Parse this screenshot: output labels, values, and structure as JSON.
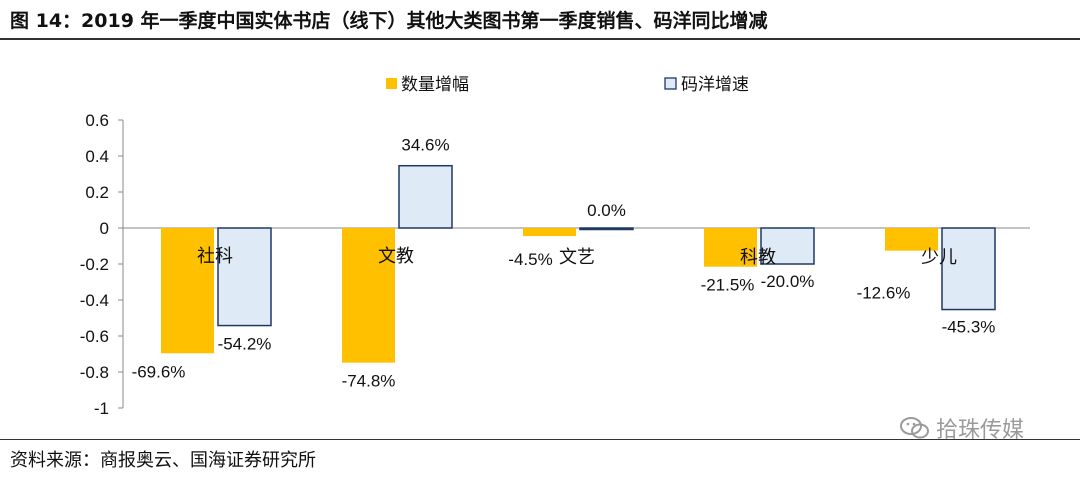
{
  "title": "图 14：2019 年一季度中国实体书店（线下）其他大类图书第一季度销售、码洋同比增减",
  "source": "资料来源：商报奥云、国海证券研究所",
  "watermark": {
    "text": "拾珠传媒",
    "icon": "wechat-icon"
  },
  "colors": {
    "qty": "#FFC000",
    "price": "#DEEBF7",
    "price_border": "#1F3864"
  },
  "chart_data": {
    "type": "bar",
    "categories": [
      "社科",
      "文教",
      "文艺",
      "科教",
      "少儿"
    ],
    "series": [
      {
        "name": "数量增幅",
        "values": [
          -0.696,
          -0.748,
          -0.045,
          -0.215,
          -0.126
        ],
        "labels": [
          "-69.6%",
          "-74.8%",
          "-4.5%",
          "-21.5%",
          "-12.6%"
        ]
      },
      {
        "name": "码洋增速",
        "values": [
          -0.542,
          0.346,
          0.0,
          -0.2,
          -0.453
        ],
        "labels": [
          "-54.2%",
          "34.6%",
          "0.0%",
          "-20.0%",
          "-45.3%"
        ]
      }
    ],
    "yticks": [
      "0.6",
      "0.4",
      "0.2",
      "0",
      "-0.2",
      "-0.4",
      "-0.6",
      "-0.8",
      "-1"
    ],
    "ylim": [
      -1,
      0.6
    ],
    "legend": "top-center",
    "grid": false
  }
}
